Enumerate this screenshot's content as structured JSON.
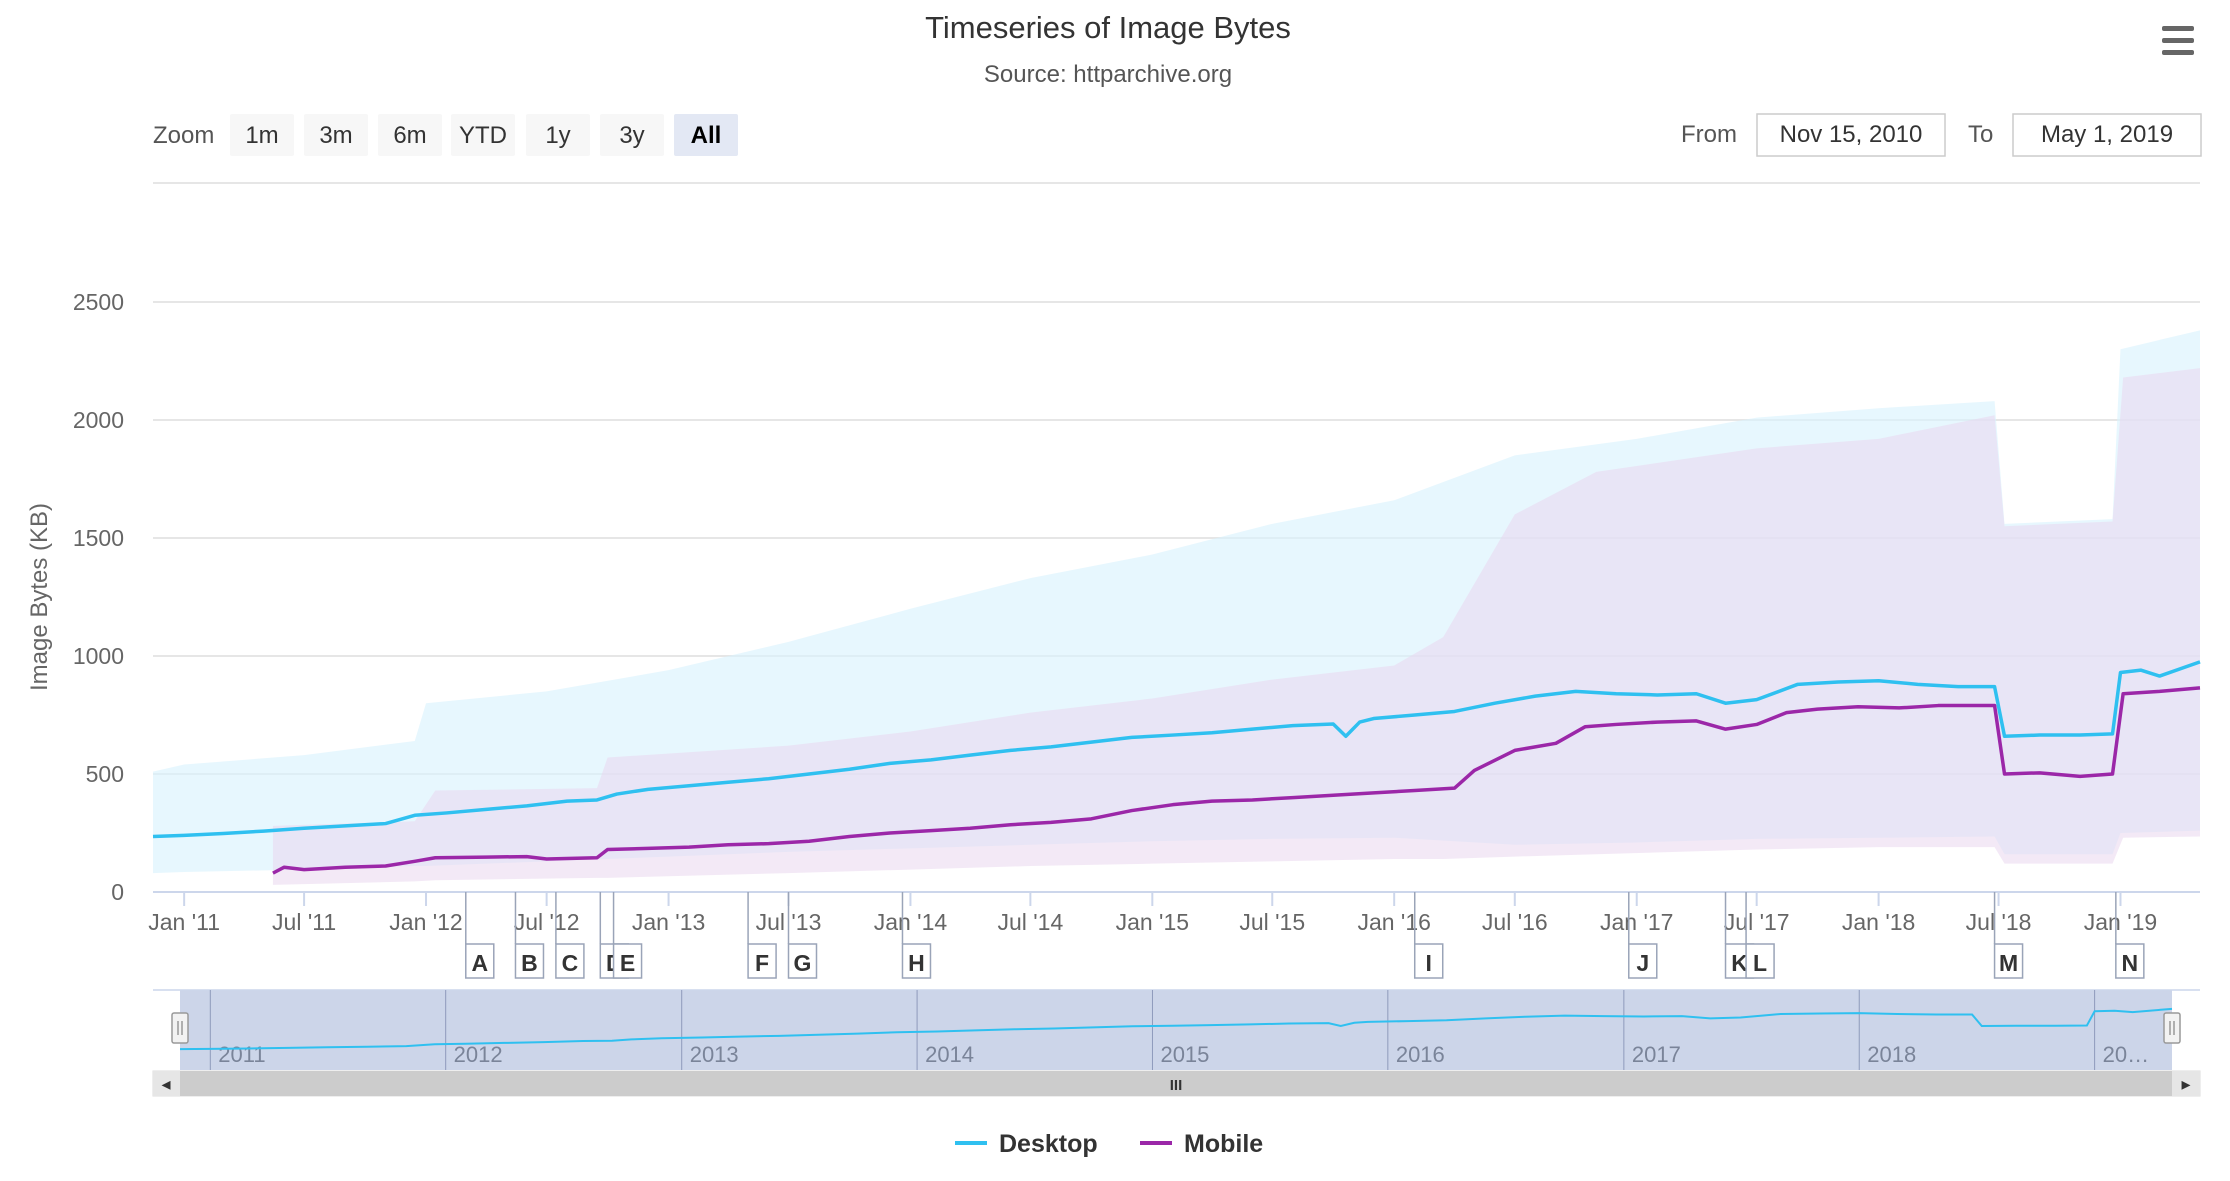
{
  "chart_data": {
    "type": "line",
    "title": "Timeseries of Image Bytes",
    "subtitle": "Source: httparchive.org",
    "ylabel": "Image Bytes (KB)",
    "xlabel": "",
    "ylim": [
      0,
      2500
    ],
    "y_ticks": [
      0,
      500,
      1000,
      1500,
      2000,
      2500
    ],
    "x_range": [
      "2010-11-15",
      "2019-05-01"
    ],
    "x_tick_labels": [
      {
        "label": "Jan '11",
        "date": "2011-01-01"
      },
      {
        "label": "Jul '11",
        "date": "2011-07-01"
      },
      {
        "label": "Jan '12",
        "date": "2012-01-01"
      },
      {
        "label": "Jul '12",
        "date": "2012-07-01"
      },
      {
        "label": "Jan '13",
        "date": "2013-01-01"
      },
      {
        "label": "Jul '13",
        "date": "2013-07-01"
      },
      {
        "label": "Jan '14",
        "date": "2014-01-01"
      },
      {
        "label": "Jul '14",
        "date": "2014-07-01"
      },
      {
        "label": "Jan '15",
        "date": "2015-01-01"
      },
      {
        "label": "Jul '15",
        "date": "2015-07-01"
      },
      {
        "label": "Jan '16",
        "date": "2016-01-01"
      },
      {
        "label": "Jul '16",
        "date": "2016-07-01"
      },
      {
        "label": "Jan '17",
        "date": "2017-01-01"
      },
      {
        "label": "Jul '17",
        "date": "2017-07-01"
      },
      {
        "label": "Jan '18",
        "date": "2018-01-01"
      },
      {
        "label": "Jul '18",
        "date": "2018-07-01"
      },
      {
        "label": "Jan '19",
        "date": "2019-01-01"
      }
    ],
    "grid": true,
    "legend_position": "bottom-center",
    "series": [
      {
        "name": "Desktop",
        "color": "#2fc0f0",
        "points": [
          [
            "2010-11-15",
            235
          ],
          [
            "2011-01-01",
            240
          ],
          [
            "2011-03-01",
            248
          ],
          [
            "2011-05-01",
            258
          ],
          [
            "2011-07-01",
            270
          ],
          [
            "2011-09-01",
            280
          ],
          [
            "2011-11-01",
            290
          ],
          [
            "2011-12-15",
            325
          ],
          [
            "2012-02-01",
            335
          ],
          [
            "2012-04-01",
            350
          ],
          [
            "2012-06-01",
            365
          ],
          [
            "2012-08-01",
            385
          ],
          [
            "2012-09-15",
            390
          ],
          [
            "2012-10-15",
            415
          ],
          [
            "2012-12-01",
            435
          ],
          [
            "2013-02-01",
            450
          ],
          [
            "2013-04-01",
            465
          ],
          [
            "2013-06-01",
            480
          ],
          [
            "2013-08-01",
            500
          ],
          [
            "2013-10-01",
            520
          ],
          [
            "2013-12-01",
            545
          ],
          [
            "2014-02-01",
            560
          ],
          [
            "2014-04-01",
            580
          ],
          [
            "2014-06-01",
            600
          ],
          [
            "2014-08-01",
            615
          ],
          [
            "2014-10-01",
            635
          ],
          [
            "2014-12-01",
            655
          ],
          [
            "2015-02-01",
            665
          ],
          [
            "2015-04-01",
            675
          ],
          [
            "2015-06-01",
            690
          ],
          [
            "2015-08-01",
            705
          ],
          [
            "2015-10-01",
            712
          ],
          [
            "2015-10-20",
            660
          ],
          [
            "2015-11-10",
            720
          ],
          [
            "2015-12-01",
            735
          ],
          [
            "2016-02-01",
            750
          ],
          [
            "2016-04-01",
            765
          ],
          [
            "2016-06-01",
            800
          ],
          [
            "2016-08-01",
            830
          ],
          [
            "2016-10-01",
            850
          ],
          [
            "2016-12-01",
            840
          ],
          [
            "2017-02-01",
            835
          ],
          [
            "2017-04-01",
            840
          ],
          [
            "2017-05-15",
            800
          ],
          [
            "2017-07-01",
            815
          ],
          [
            "2017-09-01",
            880
          ],
          [
            "2017-11-01",
            890
          ],
          [
            "2018-01-01",
            895
          ],
          [
            "2018-03-01",
            880
          ],
          [
            "2018-05-01",
            870
          ],
          [
            "2018-06-25",
            870
          ],
          [
            "2018-07-10",
            660
          ],
          [
            "2018-09-01",
            665
          ],
          [
            "2018-11-01",
            665
          ],
          [
            "2018-12-20",
            670
          ],
          [
            "2019-01-01",
            930
          ],
          [
            "2019-02-01",
            940
          ],
          [
            "2019-03-01",
            915
          ],
          [
            "2019-05-01",
            975
          ]
        ]
      },
      {
        "name": "Mobile",
        "color": "#9b27a8",
        "points": [
          [
            "2011-05-15",
            80
          ],
          [
            "2011-06-01",
            105
          ],
          [
            "2011-07-01",
            95
          ],
          [
            "2011-09-01",
            105
          ],
          [
            "2011-11-01",
            110
          ],
          [
            "2011-12-15",
            130
          ],
          [
            "2012-01-15",
            145
          ],
          [
            "2012-04-01",
            148
          ],
          [
            "2012-06-01",
            150
          ],
          [
            "2012-07-01",
            140
          ],
          [
            "2012-09-15",
            145
          ],
          [
            "2012-10-01",
            180
          ],
          [
            "2012-12-01",
            185
          ],
          [
            "2013-02-01",
            190
          ],
          [
            "2013-04-01",
            200
          ],
          [
            "2013-06-01",
            205
          ],
          [
            "2013-08-01",
            215
          ],
          [
            "2013-10-01",
            235
          ],
          [
            "2013-12-01",
            250
          ],
          [
            "2014-02-01",
            260
          ],
          [
            "2014-04-01",
            270
          ],
          [
            "2014-06-01",
            285
          ],
          [
            "2014-08-01",
            295
          ],
          [
            "2014-10-01",
            310
          ],
          [
            "2014-12-01",
            345
          ],
          [
            "2015-02-01",
            370
          ],
          [
            "2015-04-01",
            385
          ],
          [
            "2015-06-01",
            390
          ],
          [
            "2015-08-01",
            400
          ],
          [
            "2015-10-01",
            410
          ],
          [
            "2015-12-01",
            420
          ],
          [
            "2016-02-01",
            430
          ],
          [
            "2016-04-01",
            440
          ],
          [
            "2016-05-01",
            515
          ],
          [
            "2016-07-01",
            600
          ],
          [
            "2016-09-01",
            630
          ],
          [
            "2016-10-15",
            700
          ],
          [
            "2016-12-01",
            710
          ],
          [
            "2017-02-01",
            720
          ],
          [
            "2017-04-01",
            725
          ],
          [
            "2017-05-15",
            690
          ],
          [
            "2017-07-01",
            710
          ],
          [
            "2017-08-15",
            760
          ],
          [
            "2017-10-01",
            775
          ],
          [
            "2017-12-01",
            785
          ],
          [
            "2018-02-01",
            780
          ],
          [
            "2018-04-01",
            790
          ],
          [
            "2018-06-25",
            790
          ],
          [
            "2018-07-10",
            500
          ],
          [
            "2018-09-01",
            505
          ],
          [
            "2018-11-01",
            490
          ],
          [
            "2018-12-20",
            500
          ],
          [
            "2019-01-05",
            840
          ],
          [
            "2019-03-01",
            850
          ],
          [
            "2019-05-01",
            865
          ]
        ]
      }
    ],
    "bands": [
      {
        "name": "Desktop range",
        "color": "#d9f2fd",
        "points": [
          [
            "2010-11-15",
            80,
            510
          ],
          [
            "2011-01-01",
            85,
            540
          ],
          [
            "2011-07-01",
            95,
            580
          ],
          [
            "2011-12-15",
            110,
            640
          ],
          [
            "2012-01-01",
            110,
            800
          ],
          [
            "2012-07-01",
            130,
            850
          ],
          [
            "2013-01-01",
            150,
            940
          ],
          [
            "2013-07-01",
            170,
            1060
          ],
          [
            "2014-01-01",
            185,
            1200
          ],
          [
            "2014-07-01",
            200,
            1330
          ],
          [
            "2015-01-01",
            215,
            1430
          ],
          [
            "2015-07-01",
            225,
            1560
          ],
          [
            "2016-01-01",
            230,
            1660
          ],
          [
            "2016-07-01",
            200,
            1850
          ],
          [
            "2017-01-01",
            210,
            1920
          ],
          [
            "2017-07-01",
            225,
            2010
          ],
          [
            "2018-01-01",
            230,
            2050
          ],
          [
            "2018-06-25",
            235,
            2080
          ],
          [
            "2018-07-10",
            160,
            1560
          ],
          [
            "2018-12-20",
            160,
            1580
          ],
          [
            "2019-01-01",
            250,
            2300
          ],
          [
            "2019-05-01",
            260,
            2380
          ]
        ]
      },
      {
        "name": "Mobile range",
        "color": "#e9d7ee",
        "points": [
          [
            "2011-05-15",
            30,
            280
          ],
          [
            "2011-12-15",
            45,
            300
          ],
          [
            "2012-01-15",
            50,
            430
          ],
          [
            "2012-09-15",
            60,
            440
          ],
          [
            "2012-10-01",
            60,
            570
          ],
          [
            "2013-07-01",
            80,
            620
          ],
          [
            "2014-01-01",
            95,
            680
          ],
          [
            "2014-07-01",
            110,
            760
          ],
          [
            "2015-01-01",
            120,
            820
          ],
          [
            "2015-07-01",
            130,
            900
          ],
          [
            "2016-01-01",
            140,
            960
          ],
          [
            "2016-03-15",
            140,
            1080
          ],
          [
            "2016-07-01",
            150,
            1600
          ],
          [
            "2016-11-01",
            160,
            1780
          ],
          [
            "2017-07-01",
            180,
            1880
          ],
          [
            "2018-01-01",
            190,
            1920
          ],
          [
            "2018-06-25",
            190,
            2020
          ],
          [
            "2018-07-10",
            120,
            1550
          ],
          [
            "2018-12-20",
            120,
            1570
          ],
          [
            "2019-01-05",
            230,
            2180
          ],
          [
            "2019-05-01",
            235,
            2220
          ]
        ]
      }
    ],
    "flags": [
      {
        "label": "A",
        "date": "2012-03-01"
      },
      {
        "label": "B",
        "date": "2012-05-15"
      },
      {
        "label": "C",
        "date": "2012-07-15"
      },
      {
        "label": "D",
        "date": "2012-09-20"
      },
      {
        "label": "E",
        "date": "2012-10-10"
      },
      {
        "label": "F",
        "date": "2013-05-01"
      },
      {
        "label": "G",
        "date": "2013-07-01"
      },
      {
        "label": "H",
        "date": "2013-12-20"
      },
      {
        "label": "I",
        "date": "2016-02-01"
      },
      {
        "label": "J",
        "date": "2016-12-20"
      },
      {
        "label": "K",
        "date": "2017-05-15"
      },
      {
        "label": "L",
        "date": "2017-06-15"
      },
      {
        "label": "M",
        "date": "2018-06-25"
      },
      {
        "label": "N",
        "date": "2018-12-25"
      }
    ],
    "navigator_year_labels": [
      {
        "label": "2011",
        "date": "2011-01-01"
      },
      {
        "label": "2012",
        "date": "2012-01-01"
      },
      {
        "label": "2013",
        "date": "2013-01-01"
      },
      {
        "label": "2014",
        "date": "2014-01-01"
      },
      {
        "label": "2015",
        "date": "2015-01-01"
      },
      {
        "label": "2016",
        "date": "2016-01-01"
      },
      {
        "label": "2017",
        "date": "2017-01-01"
      },
      {
        "label": "2018",
        "date": "2018-01-01"
      },
      {
        "label": "20…",
        "date": "2019-01-01"
      }
    ]
  },
  "range_selector": {
    "zoom_label": "Zoom",
    "buttons": [
      "1m",
      "3m",
      "6m",
      "YTD",
      "1y",
      "3y",
      "All"
    ],
    "selected": "All",
    "from_label": "From",
    "from_value": "Nov 15, 2010",
    "to_label": "To",
    "to_value": "May 1, 2019"
  },
  "menu": {
    "icon": "hamburger-menu-icon"
  },
  "scrollbar": {
    "grip_glyph": "III",
    "left_arrow": "◂",
    "right_arrow": "▸"
  }
}
